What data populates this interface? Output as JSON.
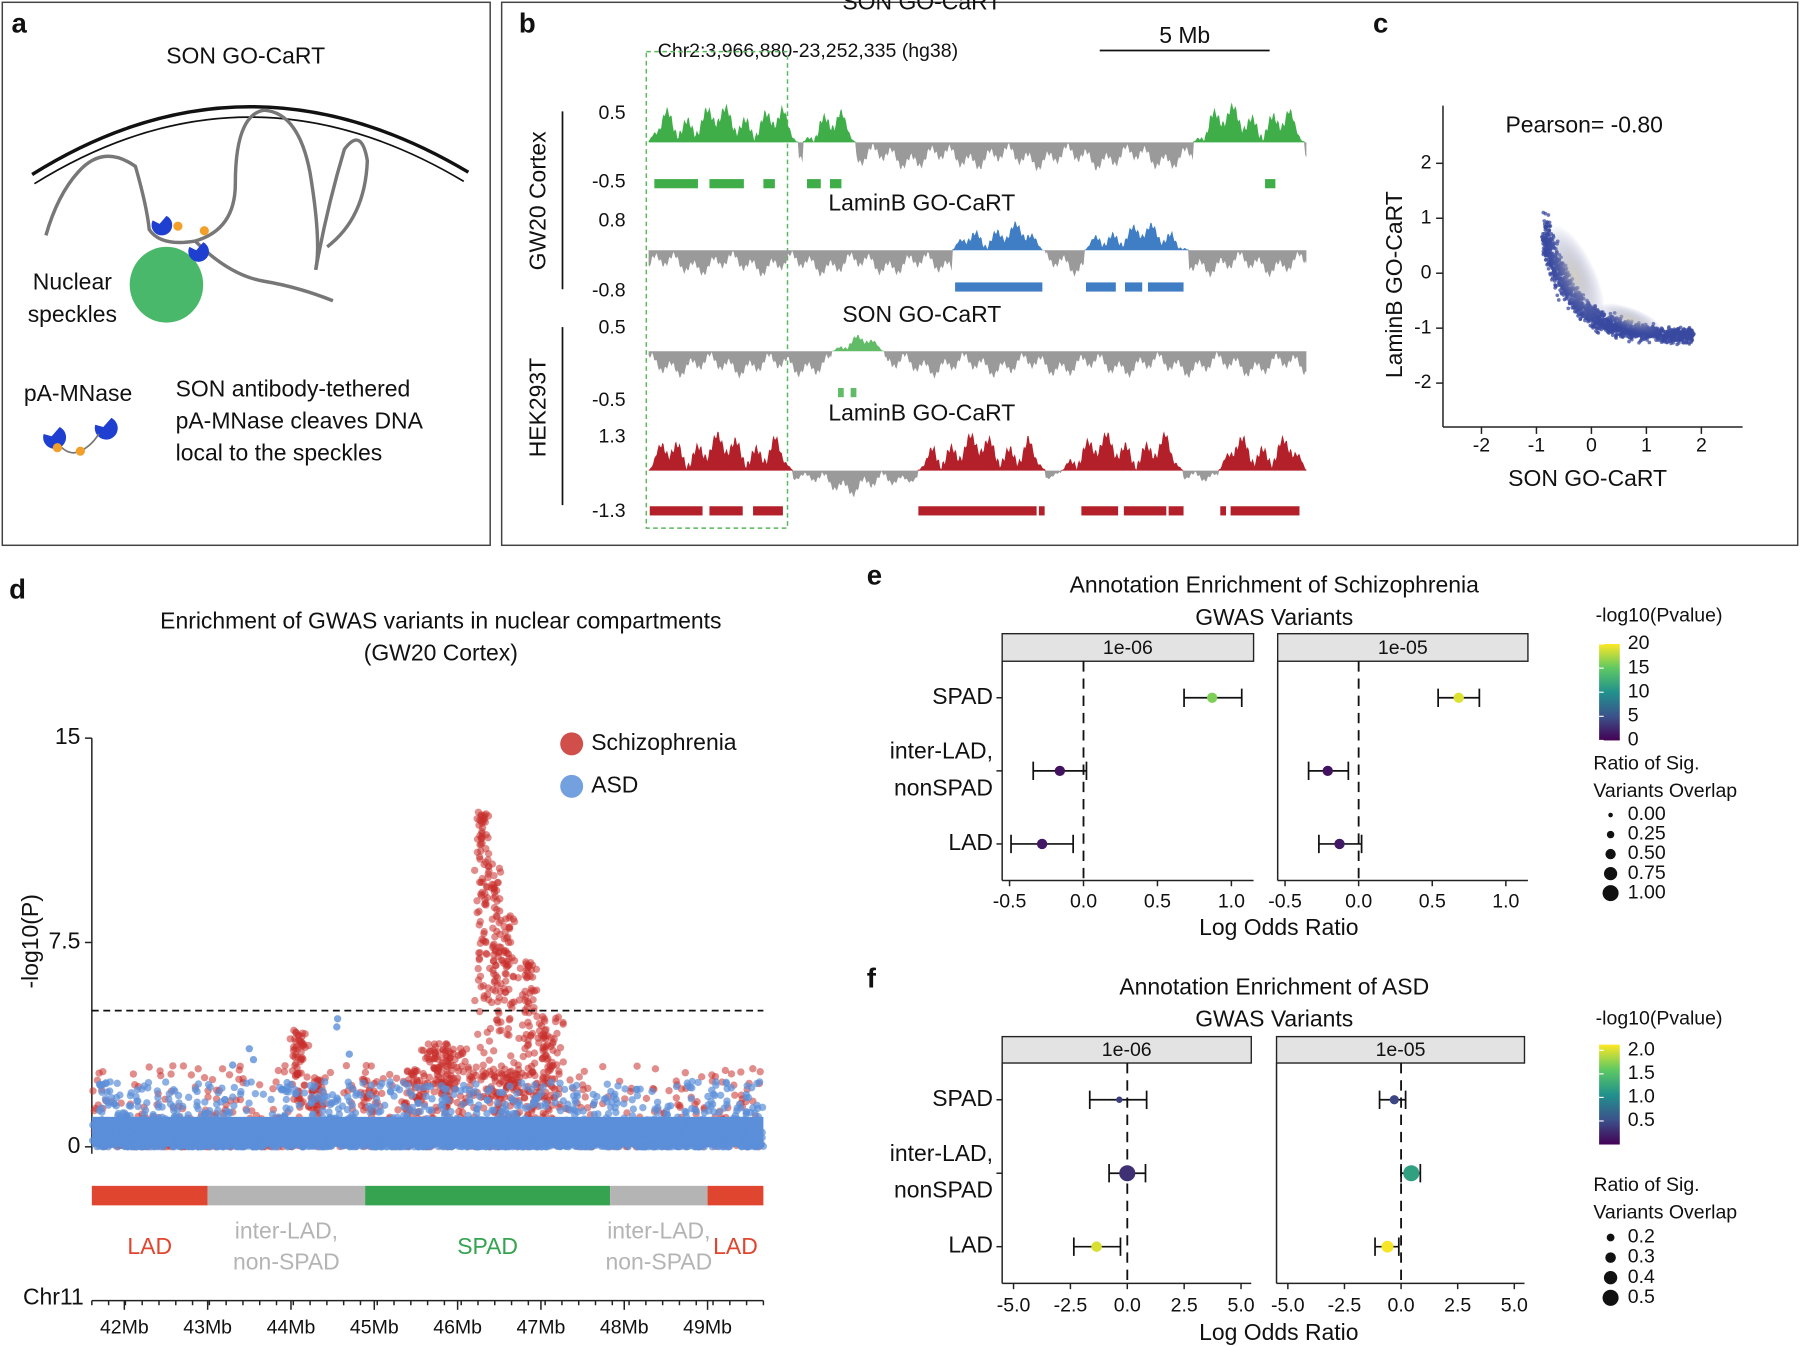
{
  "panel_a": {
    "label": "a",
    "title": "SON GO-CaRT",
    "speckle_label": [
      "Nuclear",
      "speckles"
    ],
    "enzyme_label": "pA-MNase",
    "description": [
      "SON antibody-tethered",
      "pA-MNase cleaves DNA",
      "local to the speckles"
    ]
  },
  "panel_b": {
    "label": "b",
    "region": "Chr2:3,966,880-23,252,335 (hg38)",
    "scale_bar": "5 Mb",
    "groups": [
      "GW20 Cortex",
      "HEK293T"
    ],
    "tracks": [
      {
        "name": "SON GO-CaRT",
        "ylim": [
          -0.5,
          0.5
        ],
        "color": "#3fae49"
      },
      {
        "name": "LaminB GO-CaRT",
        "ylim": [
          -0.8,
          0.8
        ],
        "color": "#3f7dc4"
      },
      {
        "name": "SON GO-CaRT",
        "ylim": [
          -0.5,
          0.5
        ],
        "color": "#62bb66"
      },
      {
        "name": "LaminB GO-CaRT",
        "ylim": [
          -1.3,
          1.3
        ],
        "color": "#b3202a"
      }
    ]
  },
  "panel_c": {
    "label": "c",
    "annotation": "Pearson= -0.80",
    "xlabel": "SON GO-CaRT",
    "ylabel": "LaminB GO-CaRT",
    "xlim": [
      -2.7,
      2.75
    ],
    "ylim": [
      -2.8,
      3.05
    ],
    "xticks": [
      -2,
      -1,
      0,
      1,
      2
    ],
    "yticks": [
      -2,
      -1,
      0,
      1,
      2
    ],
    "color": "#3a4aa0"
  },
  "panel_d": {
    "label": "d",
    "title": [
      "Enrichment of GWAS variants in nuclear compartments",
      "(GW20 Cortex)"
    ],
    "ylabel": "-log10(P)",
    "ylim": [
      0,
      15
    ],
    "yticks": [
      0,
      7.5,
      15
    ],
    "threshold": 5,
    "series": [
      {
        "name": "Schizophrenia",
        "color": "#c9302c"
      },
      {
        "name": "ASD",
        "color": "#5b8fd9"
      }
    ],
    "chromosome": "Chr11",
    "xlim": [
      41.61,
      49.67
    ],
    "xticks": [
      {
        "value": 42,
        "label": "42Mb"
      },
      {
        "value": 43,
        "label": "43Mb"
      },
      {
        "value": 44,
        "label": "44Mb"
      },
      {
        "value": 45,
        "label": "45Mb"
      },
      {
        "value": 46,
        "label": "46Mb"
      },
      {
        "value": 47,
        "label": "47Mb"
      },
      {
        "value": 48,
        "label": "48Mb"
      },
      {
        "value": 49,
        "label": "49Mb"
      }
    ],
    "compartments": [
      {
        "label": [
          "LAD"
        ],
        "start": 41.61,
        "end": 43.0,
        "color": "#e0452f"
      },
      {
        "label": [
          "inter-LAD,",
          "non-SPAD"
        ],
        "start": 43.0,
        "end": 44.89,
        "color": "#b4b4b4"
      },
      {
        "label": [
          "SPAD"
        ],
        "start": 44.89,
        "end": 47.83,
        "color": "#35a350"
      },
      {
        "label": [
          "inter-LAD,",
          "non-SPAD"
        ],
        "start": 47.83,
        "end": 49.0,
        "color": "#b4b4b4"
      },
      {
        "label": [
          "LAD"
        ],
        "start": 49.0,
        "end": 49.67,
        "color": "#e0452f"
      }
    ]
  },
  "panel_e": {
    "label": "e",
    "title": [
      "Annotation Enrichment of Schizophrenia",
      "GWAS Variants"
    ],
    "categories": [
      [
        "SPAD"
      ],
      [
        "inter-LAD,",
        "nonSPAD"
      ],
      [
        "LAD"
      ]
    ],
    "xlabel": "Log Odds Ratio",
    "xlim": [
      -0.55,
      1.15
    ],
    "xticks": [
      -0.5,
      {
        "value": 0,
        "label": "0.0"
      },
      0.5,
      {
        "value": 1,
        "label": "1.0"
      }
    ],
    "facets": [
      {
        "name": "1e-06",
        "values": [
          0.87,
          -0.16,
          -0.28
        ],
        "ci_low": [
          0.68,
          -0.34,
          -0.49
        ],
        "ci_high": [
          1.07,
          0.02,
          -0.07
        ],
        "pvalue": [
          16,
          1,
          1.5
        ],
        "ratio": [
          0.5,
          0.5,
          0.5
        ]
      },
      {
        "name": "1e-05",
        "values": [
          0.68,
          -0.21,
          -0.13
        ],
        "ci_low": [
          0.54,
          -0.34,
          -0.27
        ],
        "ci_high": [
          0.82,
          -0.07,
          0.02
        ],
        "pvalue": [
          19,
          1,
          1.5
        ],
        "ratio": [
          0.5,
          0.5,
          0.5
        ]
      }
    ],
    "color_title": "-log10(Pvalue)",
    "clim": [
      0,
      20
    ],
    "cticks": [
      0,
      5,
      10,
      15,
      20
    ],
    "size_title": [
      "Ratio of Sig.",
      "Variants Overlap"
    ],
    "size_values": [
      {
        "value": 0,
        "label": "0.00"
      },
      0.25,
      {
        "value": 0.5,
        "label": "0.50"
      },
      0.75,
      {
        "value": 1,
        "label": "1.00"
      }
    ]
  },
  "panel_f": {
    "label": "f",
    "title": [
      "Annotation Enrichment of ASD",
      "GWAS Variants"
    ],
    "categories": [
      [
        "SPAD"
      ],
      [
        "inter-LAD,",
        "nonSPAD"
      ],
      [
        "LAD"
      ]
    ],
    "xlabel": "Log Odds Ratio",
    "xlim": [
      -5.5,
      5.45
    ],
    "xticks": [
      {
        "value": -5,
        "label": "-5.0"
      },
      -2.5,
      {
        "value": 0,
        "label": "0.0"
      },
      2.5,
      {
        "value": 5,
        "label": "5.0"
      }
    ],
    "facets": [
      {
        "name": "1e-06",
        "values": [
          -0.35,
          0.0,
          -1.35
        ],
        "ci_low": [
          -1.65,
          -0.8,
          -2.35
        ],
        "ci_high": [
          0.85,
          0.8,
          -0.3
        ],
        "pvalue": [
          0.4,
          0.3,
          2.0
        ],
        "ratio": [
          0.15,
          0.5,
          0.3
        ]
      },
      {
        "name": "1e-05",
        "values": [
          -0.3,
          0.45,
          -0.6
        ],
        "ci_low": [
          -0.95,
          0.0,
          -1.15
        ],
        "ci_high": [
          0.2,
          0.85,
          -0.1
        ],
        "pvalue": [
          0.45,
          1.2,
          2.1
        ],
        "ratio": [
          0.25,
          0.5,
          0.35
        ]
      }
    ],
    "color_title": "-log10(Pvalue)",
    "clim": [
      0,
      2.12
    ],
    "cticks": [
      0.5,
      {
        "value": 1,
        "label": "1.0"
      },
      1.5,
      {
        "value": 2,
        "label": "2.0"
      }
    ],
    "size_title": [
      "Ratio of Sig.",
      "Variants Overlap"
    ],
    "size_values": [
      0.2,
      0.3,
      0.4,
      0.5
    ]
  }
}
